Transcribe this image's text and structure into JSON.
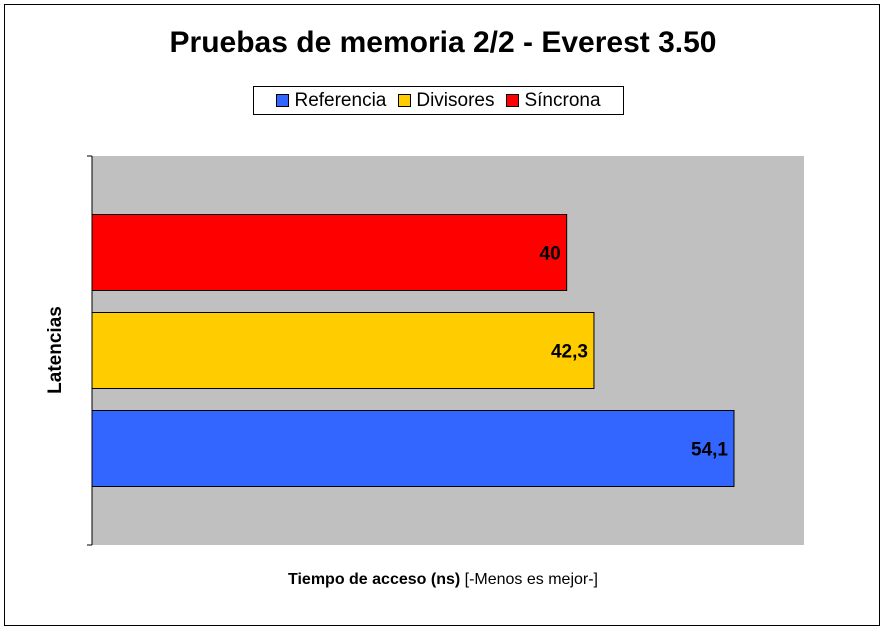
{
  "chart_data": {
    "type": "bar",
    "orientation": "horizontal",
    "title": "Pruebas de memoria 2/2 - Everest 3.50",
    "ylabel": "Latencias",
    "xlabel_bold": "Tiempo de acceso (ns)",
    "xlabel_rest": " [-Menos es mejor-]",
    "xlim": [
      0,
      60
    ],
    "legend_position": "top",
    "series": [
      {
        "name": "Referencia",
        "value": 54.1,
        "label": "54,1",
        "color": "#3366ff"
      },
      {
        "name": "Divisores",
        "value": 42.3,
        "label": "42,3",
        "color": "#ffcc00"
      },
      {
        "name": "Síncrona",
        "value": 40,
        "label": "40",
        "color": "#ff0000"
      }
    ],
    "plot_background": "#c0c0c0"
  }
}
